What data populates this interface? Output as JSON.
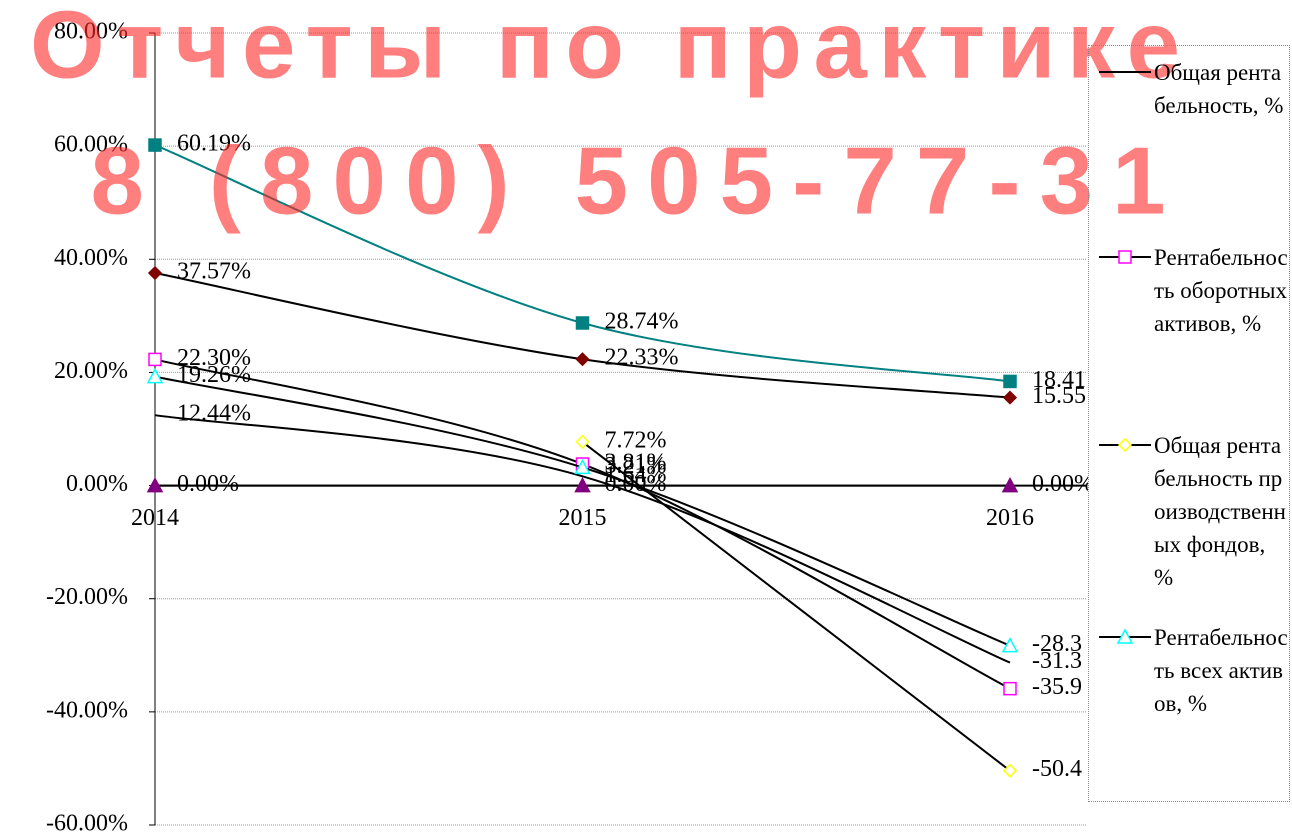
{
  "chart_data": {
    "type": "line",
    "categories": [
      "2014",
      "2015",
      "2016"
    ],
    "ylim": [
      -60,
      80
    ],
    "yticks": [
      {
        "value": -60,
        "label": "-60.00%"
      },
      {
        "value": -40,
        "label": "-40.00%"
      },
      {
        "value": -20,
        "label": "-20.00%"
      },
      {
        "value": 0,
        "label": "0.00%"
      },
      {
        "value": 20,
        "label": "20.00%"
      },
      {
        "value": 40,
        "label": "40.00%"
      },
      {
        "value": 60,
        "label": "60.00%"
      },
      {
        "value": 80,
        "label": "80.00%"
      }
    ],
    "grid": true,
    "legend": "right",
    "watermark": [
      "Отчеты по практике",
      "8 (800) 505-77-31"
    ],
    "series": [
      {
        "name": "Общая рентабельность, %",
        "color": "#000000",
        "values": [
          12.44,
          1.64,
          -31.3
        ],
        "value_labels": [
          "12.44%",
          "1.64%",
          "-31.3"
        ]
      },
      {
        "name": "Рентабельность оборотных активов, %",
        "color": "#000000",
        "marker": "square",
        "marker_color": "#ff00ff",
        "values": [
          22.3,
          3.81,
          -35.9
        ],
        "value_labels": [
          "22.30%",
          "3.81%",
          "-35.9"
        ]
      },
      {
        "name": "Общая рентабельность производственных фондов, %",
        "color": "#000000",
        "marker": "diamond",
        "marker_color": "#ffff00",
        "values": [
          null,
          7.72,
          -50.4
        ],
        "value_labels": [
          null,
          "7.72%",
          "-50.4"
        ]
      },
      {
        "name": "Рентабельность всех активов, %",
        "color": "#000000",
        "marker": "triangle",
        "marker_color": "#00ffff",
        "values": [
          19.26,
          3.21,
          -28.3
        ],
        "value_labels": [
          "19.26%",
          "3.21%",
          "-28.3"
        ]
      },
      {
        "color": "#008080",
        "marker": "square-filled",
        "marker_color": "#008080",
        "values": [
          60.19,
          28.74,
          18.41
        ],
        "value_labels": [
          "60.19%",
          "28.74%",
          "18.41"
        ]
      },
      {
        "color": "#000000",
        "marker": "diamond-filled",
        "marker_color": "#800000",
        "values": [
          37.57,
          22.33,
          15.55
        ],
        "value_labels": [
          "37.57%",
          "22.33%",
          "15.55"
        ]
      },
      {
        "color": "#000000",
        "marker": "triangle-filled",
        "marker_color": "#800080",
        "values": [
          0,
          0,
          0
        ],
        "value_labels": [
          "0.00%",
          "0.00%",
          "0.00%"
        ]
      }
    ]
  }
}
